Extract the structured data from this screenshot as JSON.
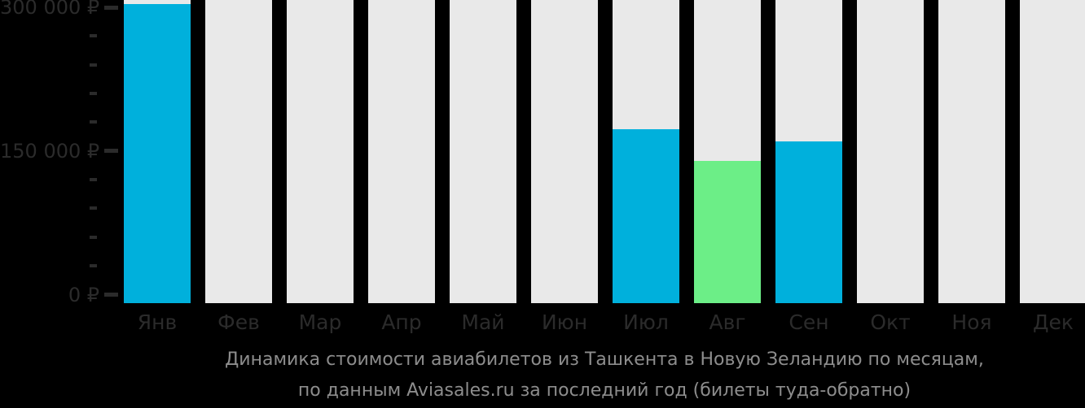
{
  "colors": {
    "background": "#000000",
    "bar_default": "#00b0dc",
    "bar_lowest": "#6cee87",
    "bar_no_data": "#e9e9e9",
    "axis_text": "#2b2b2b",
    "caption_text": "#8d8d8d"
  },
  "chart_data": {
    "type": "bar",
    "title": "Динамика стоимости авиабилетов из Ташкента в Новую Зеландию по месяцам,",
    "subtitle": "по данным Aviasales.ru за последний год (билеты туда-обратно)",
    "categories": [
      "Янв",
      "Фев",
      "Мар",
      "Апр",
      "Май",
      "Июн",
      "Июл",
      "Авг",
      "Сен",
      "Окт",
      "Ноя",
      "Дек"
    ],
    "values": [
      303000,
      null,
      null,
      null,
      null,
      null,
      173000,
      140000,
      160000,
      null,
      null,
      null
    ],
    "lowest_price_index": 7,
    "currency": "₽",
    "ylim": [
      0,
      300000
    ],
    "y_major_ticks": [
      {
        "value": 300000,
        "label": "300 000 ₽"
      },
      {
        "value": 150000,
        "label": "150 000 ₽"
      },
      {
        "value": 0,
        "label": "0 ₽"
      }
    ],
    "y_minor_step": 30000,
    "grid": "off",
    "legend": "none",
    "no_data_months": [
      "Фев",
      "Мар",
      "Апр",
      "Май",
      "Июн",
      "Окт",
      "Ноя",
      "Дек"
    ]
  }
}
